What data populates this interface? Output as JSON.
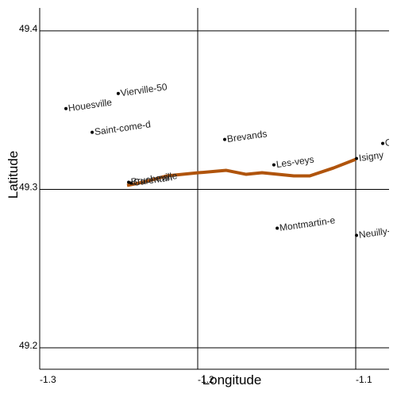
{
  "chart_data": {
    "type": "scatter",
    "x_label": "Longitude",
    "y_label": "Latitude",
    "xlim": [
      -1.3,
      -1.0789
    ],
    "ylim": [
      49.1865,
      49.4145
    ],
    "xticks": [
      -1.3,
      -1.2,
      -1.1
    ],
    "yticks": [
      49.2,
      49.3,
      49.4
    ],
    "grid": true,
    "points": {
      "color": "#000000",
      "labels": [
        "Houesville",
        "Vierville-50",
        "Saint-come-d",
        "Brevands",
        "Les-veys",
        "Isigny",
        "Os",
        "Montmartin-e",
        "Neuilly-l",
        "Brucheville",
        "Carentan"
      ],
      "x": [
        -1.2834,
        -1.2503,
        -1.2668,
        -1.1829,
        -1.1518,
        -1.0995,
        -1.0829,
        -1.1497,
        -1.0995,
        -1.2437,
        -1.2422
      ],
      "y": [
        49.351,
        49.3605,
        49.336,
        49.3315,
        49.3155,
        49.3195,
        49.329,
        49.2755,
        49.271,
        49.3045,
        49.304
      ]
    },
    "path": {
      "color": "#b0540c",
      "x": [
        -1.2447,
        -1.2347,
        -1.2196,
        -1.1995,
        -1.1819,
        -1.1693,
        -1.1593,
        -1.1492,
        -1.1392,
        -1.1291,
        -1.1141,
        -1.1
      ],
      "y": [
        49.3025,
        49.3045,
        49.3085,
        49.3105,
        49.312,
        49.3095,
        49.3105,
        49.3095,
        49.3085,
        49.3085,
        49.3135,
        49.319
      ]
    }
  }
}
